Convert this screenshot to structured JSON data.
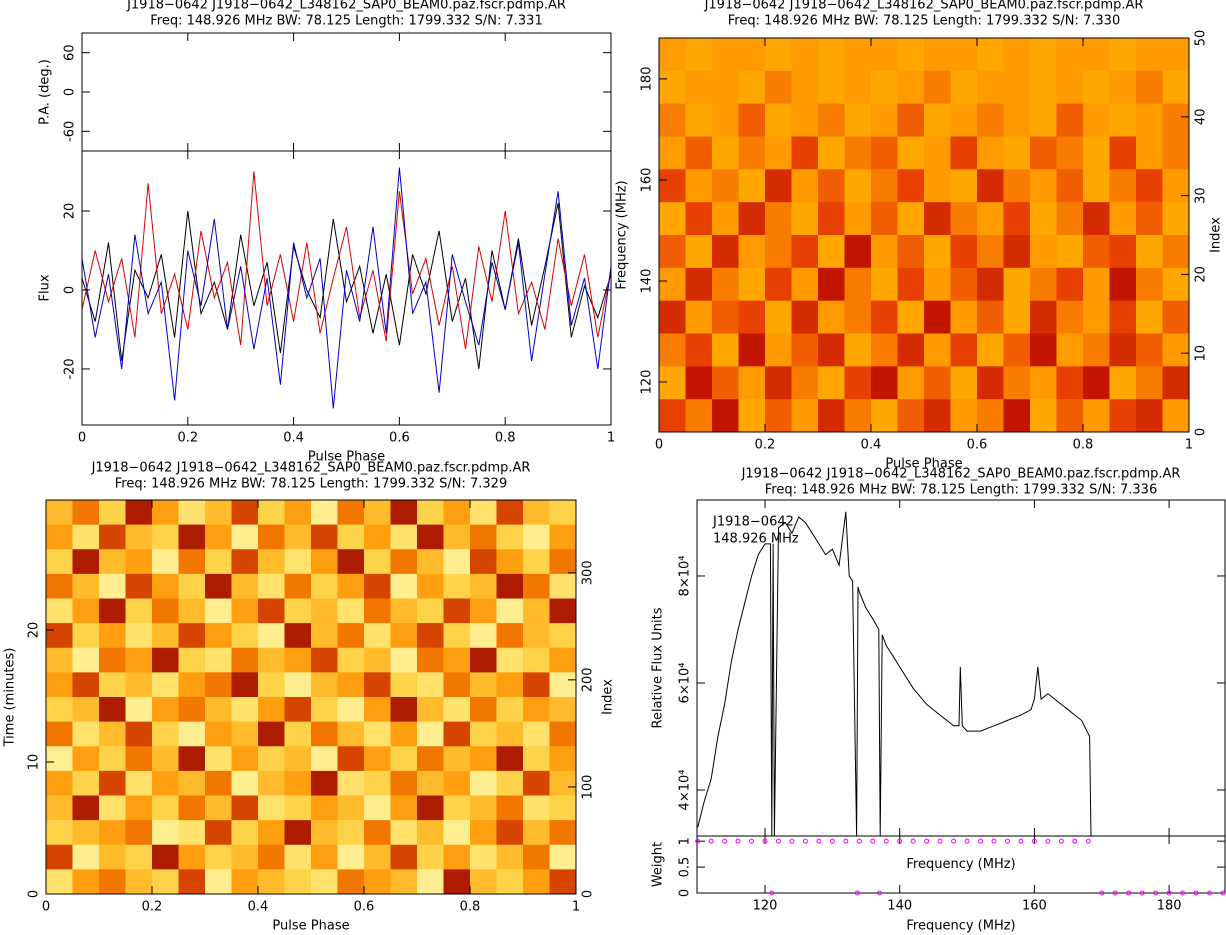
{
  "chart_data": [
    {
      "type": "line",
      "title": "J1918−0642 J1918−0642_L348162_SAP0_BEAM0.paz.fscr.pdmp.AR",
      "subtitle": "Freq: 148.926 MHz BW: 78.125 Length: 1799.332 S/N: 7.331",
      "xlabel": "Pulse Phase",
      "ylabel": "Flux",
      "xlim": [
        0,
        1
      ],
      "xticks": [
        0,
        0.2,
        0.4,
        0.6,
        0.8,
        1
      ],
      "ylim": [
        -34.2,
        35.2
      ],
      "yticks": [
        -20,
        0,
        20
      ],
      "pa": {
        "ylabel": "P.A. (deg.)",
        "ylim": [
          -90,
          90
        ],
        "yticks": [
          -60,
          0,
          60
        ]
      },
      "x": [
        0,
        0.025,
        0.05,
        0.075,
        0.1,
        0.125,
        0.15,
        0.175,
        0.2,
        0.225,
        0.25,
        0.275,
        0.3,
        0.325,
        0.35,
        0.375,
        0.4,
        0.425,
        0.45,
        0.475,
        0.5,
        0.525,
        0.55,
        0.575,
        0.6,
        0.625,
        0.65,
        0.675,
        0.7,
        0.725,
        0.75,
        0.775,
        0.8,
        0.825,
        0.85,
        0.875,
        0.9,
        0.925,
        0.95,
        0.975,
        1
      ],
      "series": [
        {
          "color": "#000000",
          "values": [
            3,
            -8,
            12,
            -18,
            5,
            -2,
            9,
            -12,
            20,
            -6,
            2,
            -10,
            14,
            -4,
            7,
            -16,
            11,
            0,
            -7,
            18,
            -3,
            6,
            -11,
            4,
            -14,
            9,
            -1,
            15,
            -8,
            3,
            -20,
            10,
            -5,
            13,
            -9,
            6,
            22,
            -12,
            1,
            -7,
            4
          ]
        },
        {
          "color": "#e00000",
          "values": [
            -5,
            10,
            -3,
            8,
            -12,
            27,
            -6,
            4,
            -10,
            15,
            -2,
            7,
            -14,
            30,
            -4,
            9,
            -8,
            12,
            -11,
            3,
            16,
            -7,
            5,
            -13,
            25,
            -1,
            8,
            -9,
            6,
            -15,
            11,
            -3,
            20,
            -6,
            2,
            -10,
            13,
            -4,
            9,
            -12,
            5
          ]
        },
        {
          "color": "#0000d0",
          "values": [
            8,
            -12,
            4,
            -20,
            14,
            -6,
            2,
            -28,
            10,
            -4,
            18,
            -10,
            6,
            -15,
            3,
            -24,
            12,
            -2,
            8,
            -30,
            5,
            -8,
            16,
            -11,
            31,
            -6,
            2,
            -26,
            9,
            -3,
            -14,
            7,
            -5,
            12,
            -18,
            4,
            25,
            -9,
            3,
            -20,
            6
          ]
        }
      ]
    },
    {
      "type": "heatmap",
      "title": "J1918−0642 J1918−0642_L348162_SAP0_BEAM0.paz.fscr.pdmp.AR",
      "subtitle": "Freq: 148.926 MHz BW: 78.125 Length: 1799.332 S/N: 7.330",
      "xlabel": "Pulse Phase",
      "ylabel": "Frequency (MHz)",
      "y2label": "Index",
      "xlim": [
        0,
        1
      ],
      "xticks": [
        0,
        0.2,
        0.4,
        0.6,
        0.8,
        1
      ],
      "ylim": [
        110.1,
        188.1
      ],
      "yticks": [
        120,
        140,
        160,
        180
      ],
      "y2lim": [
        0,
        50
      ],
      "y2ticks": [
        0,
        10,
        20,
        30,
        40,
        50
      ],
      "zlim": [
        0,
        9
      ],
      "colormap": [
        "#b00000",
        "#e84000",
        "#ff9a00",
        "#ffc000"
      ],
      "z": [
        [
          6,
          7,
          6,
          6,
          7,
          6,
          7,
          6,
          6,
          7,
          6,
          6,
          7,
          6,
          7,
          6,
          6,
          7,
          6,
          6
        ],
        [
          7,
          6,
          6,
          7,
          5,
          6,
          7,
          6,
          7,
          6,
          5,
          7,
          6,
          6,
          7,
          6,
          7,
          6,
          5,
          7
        ],
        [
          5,
          7,
          6,
          4,
          7,
          6,
          5,
          7,
          6,
          4,
          7,
          6,
          5,
          6,
          7,
          4,
          6,
          7,
          6,
          5
        ],
        [
          6,
          4,
          7,
          5,
          6,
          3,
          7,
          5,
          4,
          7,
          6,
          3,
          6,
          7,
          4,
          5,
          7,
          3,
          6,
          5
        ],
        [
          3,
          6,
          5,
          7,
          2,
          6,
          4,
          7,
          5,
          3,
          6,
          7,
          2,
          5,
          6,
          4,
          7,
          5,
          3,
          6
        ],
        [
          7,
          3,
          6,
          2,
          5,
          7,
          3,
          6,
          4,
          7,
          2,
          5,
          6,
          3,
          7,
          5,
          2,
          6,
          4,
          7
        ],
        [
          4,
          7,
          2,
          6,
          5,
          3,
          7,
          1,
          6,
          4,
          7,
          3,
          5,
          2,
          6,
          7,
          4,
          3,
          7,
          5
        ],
        [
          6,
          2,
          5,
          7,
          3,
          6,
          1,
          5,
          7,
          3,
          6,
          4,
          2,
          7,
          5,
          3,
          6,
          1,
          5,
          7
        ],
        [
          2,
          6,
          4,
          3,
          7,
          2,
          6,
          5,
          3,
          7,
          1,
          6,
          4,
          7,
          2,
          5,
          6,
          3,
          7,
          4
        ],
        [
          5,
          3,
          7,
          1,
          6,
          4,
          2,
          7,
          5,
          2,
          6,
          3,
          7,
          4,
          1,
          6,
          5,
          2,
          4,
          6
        ],
        [
          7,
          1,
          4,
          6,
          2,
          5,
          7,
          3,
          1,
          6,
          4,
          7,
          2,
          5,
          6,
          3,
          1,
          7,
          5,
          2
        ],
        [
          3,
          5,
          1,
          7,
          4,
          6,
          2,
          5,
          7,
          4,
          2,
          6,
          5,
          1,
          7,
          4,
          6,
          3,
          2,
          6
        ]
      ]
    },
    {
      "type": "heatmap",
      "title": "J1918−0642 J1918−0642_L348162_SAP0_BEAM0.paz.fscr.pdmp.AR",
      "subtitle": "Freq: 148.926 MHz BW: 78.125 Length: 1799.332 S/N: 7.329",
      "xlabel": "Pulse Phase",
      "ylabel": "Time (minutes)",
      "y2label": "Index",
      "xlim": [
        0,
        1
      ],
      "xticks": [
        0,
        0.2,
        0.4,
        0.6,
        0.8,
        1
      ],
      "ylim": [
        0,
        29.85
      ],
      "yticks": [
        0,
        10,
        20
      ],
      "y2lim": [
        0,
        368
      ],
      "y2ticks": [
        0,
        100,
        200,
        300
      ],
      "zlim": [
        0,
        9
      ],
      "colormap": [
        "#1a0000",
        "#c02000",
        "#ff9000",
        "#ffd040",
        "#ffee90"
      ],
      "z": [
        [
          6,
          4,
          7,
          2,
          5,
          8,
          6,
          3,
          7,
          5,
          9,
          4,
          6,
          2,
          7,
          5,
          8,
          3,
          6,
          7
        ],
        [
          5,
          8,
          3,
          6,
          7,
          2,
          5,
          9,
          4,
          6,
          3,
          7,
          5,
          8,
          2,
          6,
          4,
          7,
          9,
          5
        ],
        [
          7,
          2,
          6,
          5,
          9,
          4,
          7,
          3,
          6,
          8,
          5,
          2,
          7,
          4,
          6,
          9,
          3,
          5,
          7,
          4
        ],
        [
          4,
          6,
          9,
          3,
          5,
          7,
          2,
          6,
          8,
          4,
          7,
          5,
          3,
          9,
          5,
          7,
          6,
          2,
          4,
          8
        ],
        [
          8,
          5,
          2,
          7,
          4,
          6,
          9,
          5,
          3,
          7,
          6,
          8,
          4,
          6,
          7,
          3,
          5,
          9,
          6,
          2
        ],
        [
          3,
          7,
          5,
          8,
          6,
          3,
          5,
          7,
          9,
          2,
          6,
          4,
          8,
          5,
          3,
          7,
          9,
          4,
          6,
          7
        ],
        [
          6,
          9,
          4,
          5,
          2,
          7,
          8,
          4,
          6,
          5,
          3,
          7,
          6,
          9,
          4,
          5,
          2,
          8,
          7,
          5
        ],
        [
          5,
          3,
          7,
          6,
          8,
          5,
          4,
          2,
          7,
          9,
          6,
          5,
          3,
          7,
          8,
          4,
          6,
          5,
          3,
          9
        ],
        [
          7,
          6,
          2,
          9,
          5,
          4,
          6,
          8,
          5,
          3,
          7,
          9,
          5,
          2,
          6,
          8,
          4,
          7,
          5,
          6
        ],
        [
          4,
          8,
          6,
          3,
          7,
          9,
          5,
          6,
          2,
          7,
          4,
          6,
          8,
          5,
          9,
          3,
          7,
          6,
          8,
          4
        ],
        [
          9,
          5,
          7,
          4,
          6,
          2,
          8,
          5,
          7,
          6,
          9,
          3,
          5,
          7,
          4,
          6,
          5,
          2,
          7,
          5
        ],
        [
          5,
          7,
          3,
          8,
          5,
          6,
          4,
          9,
          6,
          5,
          2,
          8,
          7,
          4,
          6,
          5,
          9,
          7,
          3,
          6
        ],
        [
          6,
          2,
          8,
          5,
          7,
          4,
          6,
          3,
          8,
          7,
          5,
          6,
          9,
          5,
          2,
          7,
          6,
          4,
          8,
          7
        ],
        [
          7,
          6,
          5,
          4,
          9,
          8,
          3,
          7,
          5,
          2,
          6,
          7,
          4,
          8,
          6,
          9,
          5,
          3,
          6,
          4
        ],
        [
          3,
          9,
          6,
          7,
          2,
          5,
          7,
          6,
          4,
          8,
          5,
          9,
          6,
          3,
          7,
          5,
          8,
          6,
          4,
          9
        ],
        [
          8,
          5,
          4,
          6,
          7,
          3,
          9,
          5,
          6,
          7,
          8,
          4,
          5,
          6,
          9,
          2,
          6,
          7,
          5,
          3
        ]
      ]
    },
    {
      "type": "line",
      "title": "J1918−0642 J1918−0642_L348162_SAP0_BEAM0.paz.fscr.pdmp.AR",
      "subtitle": "Freq: 148.926 MHz BW: 78.125 Length: 1799.332 S/N: 7.336",
      "annotations": [
        "J1918−0642",
        "148.926 MHz"
      ],
      "xlabel": "Frequency (MHz)",
      "ylabel": "Relative Flux Units",
      "xlim": [
        109.9,
        188.3
      ],
      "xticks": [
        120,
        140,
        160,
        180
      ],
      "ylim": [
        31400,
        94200
      ],
      "yticks": [
        {
          "value": 40000,
          "label": "4×10⁴"
        },
        {
          "value": 60000,
          "label": "6×10⁴"
        },
        {
          "value": 80000,
          "label": "8×10⁴"
        }
      ],
      "x": [
        110,
        111,
        112,
        113,
        114,
        115,
        116,
        117,
        118,
        119,
        120,
        120.8,
        121,
        121.2,
        121.4,
        122,
        123,
        124,
        125,
        126,
        127,
        128,
        129,
        130,
        131,
        132,
        132.5,
        133,
        133.6,
        133.8,
        134,
        135,
        136,
        136.9,
        137.1,
        137.4,
        138,
        139,
        140,
        142,
        144,
        146,
        148,
        148.8,
        149,
        149.3,
        150,
        152,
        154,
        156,
        158,
        159.5,
        160,
        160.5,
        161,
        162,
        163,
        164,
        165,
        166,
        167,
        168.2,
        168.4
      ],
      "series": [
        {
          "color": "#000000",
          "values": [
            33000,
            38000,
            42000,
            50000,
            56000,
            64000,
            70000,
            75000,
            80000,
            84000,
            86000,
            86000,
            31500,
            86000,
            31500,
            89000,
            90000,
            88000,
            91000,
            90000,
            88000,
            86000,
            84000,
            85000,
            82000,
            92000,
            80000,
            79000,
            31500,
            78000,
            77000,
            74000,
            72000,
            70000,
            31500,
            69000,
            67000,
            65000,
            63000,
            59000,
            56000,
            54000,
            52000,
            52000,
            63000,
            52000,
            51000,
            51000,
            52000,
            53000,
            54000,
            55000,
            57000,
            63000,
            57000,
            58000,
            57000,
            56000,
            55000,
            54000,
            53000,
            50000,
            31500
          ]
        }
      ],
      "weight": {
        "ylabel": "Weight",
        "ylim": [
          0,
          1.1
        ],
        "yticks": [
          0,
          0.5,
          1
        ],
        "color": "#ff00ff",
        "x": [
          110,
          112,
          114,
          116,
          118,
          120,
          121,
          122,
          124,
          126,
          128,
          130,
          132,
          133.7,
          134,
          136,
          137,
          138,
          140,
          142,
          144,
          146,
          148,
          150,
          152,
          154,
          156,
          158,
          160,
          162,
          164,
          166,
          168,
          170,
          172,
          174,
          176,
          178,
          180,
          182,
          184,
          186,
          188
        ],
        "values": [
          1,
          1,
          1,
          1,
          1,
          1,
          0,
          1,
          1,
          1,
          1,
          1,
          1,
          0,
          1,
          1,
          0,
          1,
          1,
          1,
          1,
          1,
          1,
          1,
          1,
          1,
          1,
          1,
          1,
          1,
          1,
          1,
          1,
          0,
          0,
          0,
          0,
          0,
          0,
          0,
          0,
          0,
          0
        ]
      }
    }
  ]
}
